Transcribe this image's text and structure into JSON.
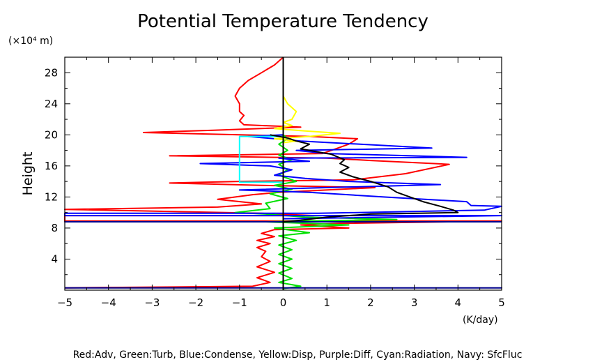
{
  "chart_data": {
    "type": "line",
    "title": "Potential Temperature Tendency",
    "ylabel": "Height",
    "yunit": "(×10⁴ m)",
    "xunit": "(K/day)",
    "xlim": [
      -5,
      5
    ],
    "ylim": [
      0,
      30
    ],
    "xticks": [
      "−5",
      "−4",
      "−3",
      "−2",
      "−1",
      "0",
      "1",
      "2",
      "3",
      "4",
      "5"
    ],
    "yticks": [
      "4",
      "8",
      "12",
      "16",
      "20",
      "24",
      "28"
    ],
    "legend_text": "Red:Adv, Green:Turb, Blue:Condense, Yellow:Disp, Purple:Diff, Cyan:Radiation, Navy: SfcFluc",
    "series": [
      {
        "color": "#ff0000",
        "points": [
          [
            -5.0,
            0.3
          ],
          [
            -0.7,
            0.5
          ],
          [
            -0.3,
            1.0
          ],
          [
            -0.6,
            1.6
          ],
          [
            -0.2,
            2.3
          ],
          [
            -0.6,
            3.0
          ],
          [
            -0.3,
            3.7
          ],
          [
            -0.5,
            4.3
          ],
          [
            -0.4,
            5.0
          ],
          [
            -0.6,
            5.5
          ],
          [
            -0.3,
            6.0
          ],
          [
            -0.6,
            6.4
          ],
          [
            -0.2,
            6.9
          ],
          [
            -0.5,
            7.3
          ],
          [
            -0.2,
            7.8
          ],
          [
            1.5,
            8.0
          ],
          [
            0.4,
            8.4
          ],
          [
            1.3,
            8.6
          ],
          [
            5.0,
            8.9
          ],
          [
            -5.0,
            8.9
          ],
          [
            -5.0,
            9.6
          ],
          [
            0.7,
            9.6
          ],
          [
            -0.5,
            9.9
          ],
          [
            -5.0,
            10.4
          ],
          [
            -1.5,
            10.7
          ],
          [
            -0.5,
            11.1
          ],
          [
            -1.5,
            11.7
          ],
          [
            -0.7,
            12.3
          ],
          [
            -0.1,
            12.6
          ],
          [
            2.1,
            13.2
          ],
          [
            -0.5,
            13.5
          ],
          [
            -2.6,
            13.8
          ],
          [
            -1.0,
            14.0
          ],
          [
            1.6,
            14.2
          ],
          [
            2.8,
            15.0
          ],
          [
            3.8,
            16.2
          ],
          [
            2.0,
            16.7
          ],
          [
            1.0,
            17.0
          ],
          [
            -2.6,
            17.3
          ],
          [
            0.9,
            17.6
          ],
          [
            1.2,
            18.2
          ],
          [
            1.5,
            18.8
          ],
          [
            1.7,
            19.5
          ],
          [
            0.6,
            19.8
          ],
          [
            -1.0,
            20.0
          ],
          [
            -3.2,
            20.3
          ],
          [
            -1.6,
            20.6
          ],
          [
            0.4,
            21.0
          ],
          [
            -0.9,
            21.3
          ],
          [
            -1.0,
            21.8
          ],
          [
            -0.9,
            22.5
          ],
          [
            -1.0,
            23.0
          ],
          [
            -1.0,
            24.0
          ],
          [
            -1.1,
            25.0
          ],
          [
            -1.0,
            26.0
          ],
          [
            -0.8,
            27.0
          ],
          [
            -0.5,
            28.0
          ],
          [
            -0.2,
            29.0
          ],
          [
            0.0,
            30.0
          ]
        ]
      },
      {
        "color": "#00e000",
        "points": [
          [
            0.0,
            0.2
          ],
          [
            0.4,
            0.5
          ],
          [
            -0.1,
            1.0
          ],
          [
            0.2,
            1.5
          ],
          [
            -0.1,
            2.2
          ],
          [
            0.2,
            2.8
          ],
          [
            -0.1,
            3.4
          ],
          [
            0.2,
            4.0
          ],
          [
            -0.1,
            4.6
          ],
          [
            0.2,
            5.2
          ],
          [
            -0.1,
            5.8
          ],
          [
            0.3,
            6.4
          ],
          [
            -0.1,
            7.0
          ],
          [
            0.6,
            7.4
          ],
          [
            -0.2,
            8.0
          ],
          [
            1.5,
            8.4
          ],
          [
            -0.4,
            8.8
          ],
          [
            2.6,
            9.1
          ],
          [
            0.5,
            9.4
          ],
          [
            -0.4,
            9.8
          ],
          [
            -1.1,
            10.0
          ],
          [
            -0.3,
            10.5
          ],
          [
            -0.4,
            11.2
          ],
          [
            0.1,
            11.8
          ],
          [
            -0.3,
            12.4
          ],
          [
            0.2,
            13.0
          ],
          [
            -0.2,
            13.5
          ],
          [
            0.3,
            14.0
          ],
          [
            -0.1,
            14.8
          ],
          [
            0.1,
            15.5
          ],
          [
            -0.1,
            16.2
          ],
          [
            0.2,
            16.8
          ],
          [
            -0.1,
            17.4
          ],
          [
            0.1,
            18.0
          ],
          [
            -0.1,
            18.8
          ],
          [
            0.1,
            19.5
          ],
          [
            0.0,
            20.0
          ],
          [
            0.0,
            21.0
          ]
        ]
      },
      {
        "color": "#0000ff",
        "points": [
          [
            0.0,
            0.0
          ],
          [
            0.0,
            9.2
          ],
          [
            5.0,
            9.6
          ],
          [
            -5.0,
            9.6
          ],
          [
            -5.0,
            9.9
          ],
          [
            0.8,
            9.9
          ],
          [
            4.6,
            10.3
          ],
          [
            5.0,
            10.8
          ],
          [
            4.3,
            10.9
          ],
          [
            4.2,
            11.4
          ],
          [
            2.3,
            12.0
          ],
          [
            0.6,
            12.6
          ],
          [
            -1.0,
            12.9
          ],
          [
            3.6,
            13.6
          ],
          [
            1.5,
            14.0
          ],
          [
            0.5,
            14.4
          ],
          [
            -0.2,
            14.8
          ],
          [
            0.2,
            15.5
          ],
          [
            -0.3,
            16.0
          ],
          [
            -1.9,
            16.3
          ],
          [
            0.6,
            16.6
          ],
          [
            -0.1,
            17.0
          ],
          [
            4.2,
            17.1
          ],
          [
            1.0,
            17.6
          ],
          [
            0.3,
            18.0
          ],
          [
            3.4,
            18.3
          ],
          [
            0.4,
            19.2
          ],
          [
            -0.8,
            19.8
          ],
          [
            0.0,
            20.0
          ]
        ]
      },
      {
        "color": "#00008b",
        "points": [
          [
            -5.0,
            0.3
          ],
          [
            5.0,
            0.3
          ],
          [
            0.0,
            0.3
          ],
          [
            0.0,
            8.8
          ],
          [
            -5.0,
            8.8
          ],
          [
            5.0,
            8.8
          ]
        ]
      },
      {
        "color": "#ffff00",
        "points": [
          [
            0.0,
            19.0
          ],
          [
            0.3,
            19.2
          ],
          [
            -0.2,
            19.5
          ],
          [
            0.6,
            19.8
          ],
          [
            1.3,
            20.2
          ],
          [
            0.5,
            20.5
          ],
          [
            -0.2,
            20.8
          ],
          [
            0.2,
            21.2
          ],
          [
            0.0,
            21.6
          ],
          [
            0.2,
            22.0
          ],
          [
            0.3,
            23.0
          ],
          [
            0.1,
            24.0
          ],
          [
            0.0,
            25.0
          ]
        ]
      },
      {
        "color": "#00ffff",
        "points": [
          [
            0.0,
            13.9
          ],
          [
            -1.0,
            13.9
          ],
          [
            -1.0,
            19.8
          ],
          [
            0.0,
            19.8
          ]
        ]
      },
      {
        "color": "#000000",
        "points": [
          [
            -0.3,
            20.0
          ],
          [
            0.1,
            19.6
          ],
          [
            0.3,
            19.2
          ],
          [
            0.6,
            18.8
          ],
          [
            0.4,
            18.2
          ],
          [
            1.1,
            17.5
          ],
          [
            1.4,
            16.8
          ],
          [
            1.3,
            16.3
          ],
          [
            1.5,
            15.8
          ],
          [
            1.3,
            15.2
          ],
          [
            1.6,
            14.6
          ],
          [
            2.0,
            14.0
          ],
          [
            2.4,
            13.3
          ],
          [
            2.6,
            12.6
          ],
          [
            2.9,
            12.0
          ],
          [
            3.2,
            11.4
          ],
          [
            3.6,
            10.8
          ],
          [
            3.9,
            10.3
          ],
          [
            4.0,
            10.0
          ],
          [
            2.0,
            9.8
          ],
          [
            1.0,
            9.4
          ],
          [
            0.4,
            9.0
          ],
          [
            0.0,
            8.8
          ],
          [
            0.0,
            0.2
          ]
        ]
      }
    ]
  }
}
